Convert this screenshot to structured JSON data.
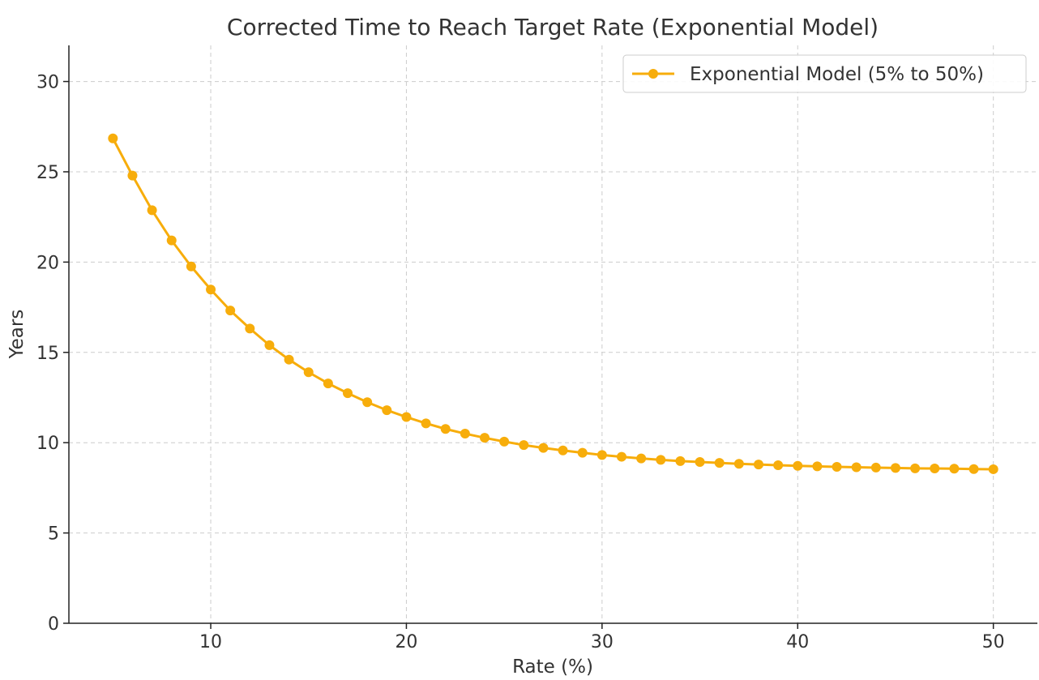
{
  "chart_data": {
    "type": "line",
    "title": "Corrected Time to Reach Target Rate (Exponential Model)",
    "xlabel": "Rate (%)",
    "ylabel": "Years",
    "xlim": [
      2.75,
      52.25
    ],
    "ylim": [
      0,
      32
    ],
    "xticks": [
      10,
      20,
      30,
      40,
      50
    ],
    "yticks": [
      0,
      5,
      10,
      15,
      20,
      25,
      30
    ],
    "grid": true,
    "legend_position": "top-right",
    "color": "#f7ad0b",
    "series": [
      {
        "name": "Exponential Model (5% to 50%)",
        "x": [
          5,
          6,
          7,
          8,
          9,
          10,
          11,
          12,
          13,
          14,
          15,
          16,
          17,
          18,
          19,
          20,
          21,
          22,
          23,
          24,
          25,
          26,
          27,
          28,
          29,
          30,
          31,
          32,
          33,
          34,
          35,
          36,
          37,
          38,
          39,
          40,
          41,
          42,
          43,
          44,
          45,
          46,
          47,
          48,
          49,
          50
        ],
        "y": [
          26.85,
          24.79,
          22.87,
          21.2,
          19.76,
          18.48,
          17.32,
          16.32,
          15.4,
          14.6,
          13.9,
          13.28,
          12.74,
          12.24,
          11.8,
          11.42,
          11.07,
          10.76,
          10.5,
          10.27,
          10.06,
          9.87,
          9.71,
          9.57,
          9.44,
          9.32,
          9.22,
          9.13,
          9.05,
          8.98,
          8.93,
          8.88,
          8.83,
          8.79,
          8.75,
          8.72,
          8.69,
          8.66,
          8.64,
          8.62,
          8.6,
          8.58,
          8.57,
          8.56,
          8.54,
          8.53
        ]
      }
    ]
  }
}
